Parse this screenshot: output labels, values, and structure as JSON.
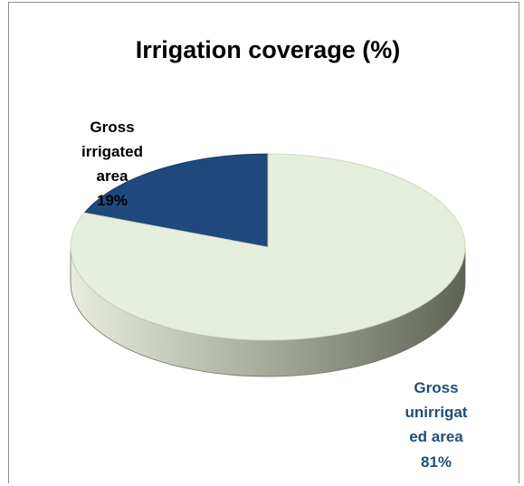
{
  "chart_data": {
    "type": "pie",
    "title": "Irrigation coverage (%)",
    "three_d": true,
    "categories": [
      "Gross irrigated area",
      "Gross unirrigated area"
    ],
    "values": [
      19,
      81
    ],
    "unit": "%",
    "data_labels": [
      {
        "lines": [
          "Gross",
          "irrigated",
          "area",
          "19%"
        ]
      },
      {
        "lines": [
          "Gross",
          "unirrigat",
          "ed area",
          "81%"
        ]
      }
    ],
    "colors": [
      "#1f497d",
      "#e6eedc"
    ],
    "label_colors": [
      "#000000",
      "#1f4e79"
    ]
  }
}
